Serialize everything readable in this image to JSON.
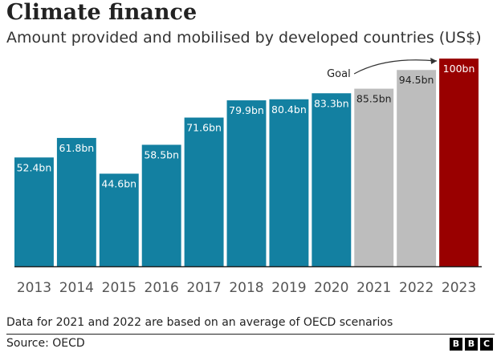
{
  "title": "Climate finance",
  "subtitle": "Amount provided and mobilised by developed countries (US$)",
  "note": "Data for 2021 and 2022 are based on an average of OECD scenarios",
  "source": "Source: OECD",
  "logo": [
    "B",
    "B",
    "C"
  ],
  "colors": {
    "actual": "#1380a1",
    "estimate": "#bdbdbd",
    "goal": "#990000",
    "axis": "#222222"
  },
  "chart_data": {
    "type": "bar",
    "title": "Climate finance",
    "subtitle": "Amount provided and mobilised by developed countries (US$)",
    "xlabel": "",
    "ylabel": "",
    "ylim": [
      0,
      100
    ],
    "grid": false,
    "categories": [
      "2013",
      "2014",
      "2015",
      "2016",
      "2017",
      "2018",
      "2019",
      "2020",
      "2021",
      "2022",
      "2023"
    ],
    "values": [
      52.4,
      61.8,
      44.6,
      58.5,
      71.6,
      79.9,
      80.4,
      83.3,
      85.5,
      94.5,
      100
    ],
    "labels": [
      "52.4bn",
      "61.8bn",
      "44.6bn",
      "58.5bn",
      "71.6bn",
      "79.9bn",
      "80.4bn",
      "83.3bn",
      "85.5bn",
      "94.5bn",
      "100bn"
    ],
    "bar_kind": [
      "actual",
      "actual",
      "actual",
      "actual",
      "actual",
      "actual",
      "actual",
      "actual",
      "estimate",
      "estimate",
      "goal"
    ],
    "annotation": {
      "text": "Goal",
      "target": "2023"
    }
  }
}
